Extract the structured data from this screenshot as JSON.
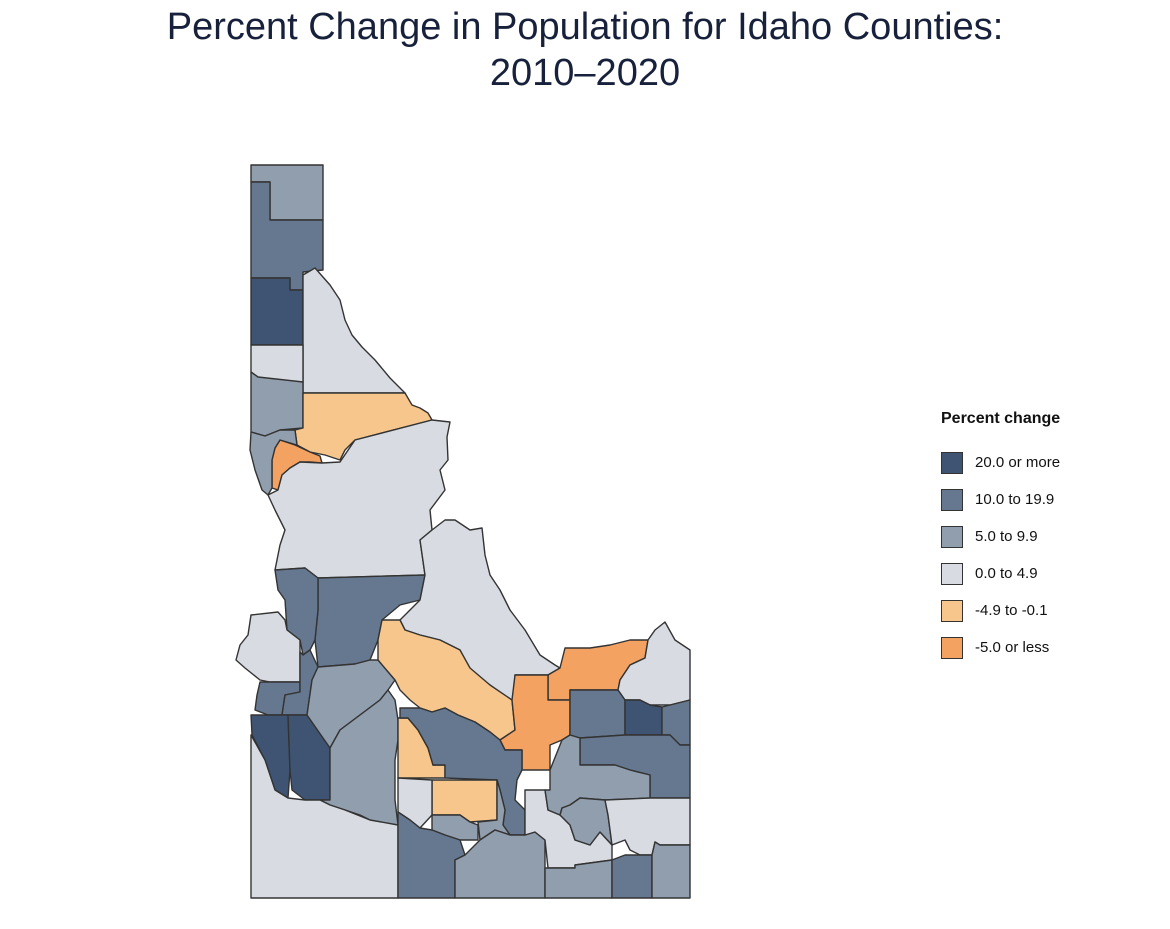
{
  "chart_data": {
    "type": "choropleth",
    "title_line1": "Percent Change in Population for Idaho Counties:",
    "title_line2": "2010–2020",
    "legend": {
      "title": "Percent change",
      "placement": "right",
      "classes": [
        {
          "label": "20.0 or more",
          "color": "#3f5472"
        },
        {
          "label": "10.0 to 19.9",
          "color": "#66788f"
        },
        {
          "label": "5.0 to 9.9",
          "color": "#919eae"
        },
        {
          "label": "0.0 to 4.9",
          "color": "#d8dce2"
        },
        {
          "label": "-4.9 to -0.1",
          "color": "#f7c68d"
        },
        {
          "label": "-5.0 or less",
          "color": "#f4a261"
        }
      ]
    },
    "region_classes": [
      2,
      1,
      0,
      3,
      3,
      2,
      4,
      5,
      2,
      3,
      1,
      1,
      3,
      1,
      1,
      0,
      0,
      2,
      2,
      3,
      3,
      4,
      5,
      3,
      5,
      1,
      0,
      1,
      1,
      4,
      1,
      4,
      3,
      2,
      2,
      1,
      2,
      3,
      2,
      2,
      3,
      2,
      1,
      2
    ],
    "border_color": "#333333"
  }
}
